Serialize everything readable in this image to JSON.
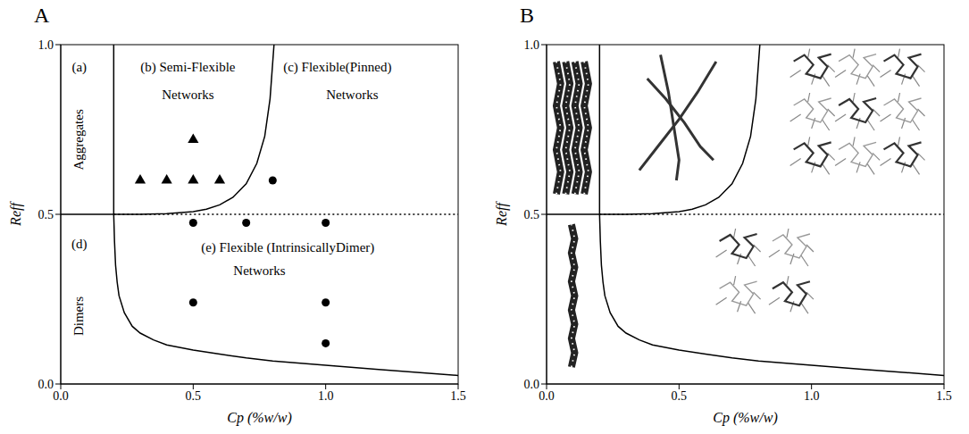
{
  "panel_labels": [
    "A",
    "B"
  ],
  "chart_data": [
    {
      "type": "line",
      "x_label": "Cp (%w/w)",
      "y_label": "Reff",
      "xlim": [
        0,
        1.5
      ],
      "ylim": [
        0,
        1
      ],
      "xticks": [
        {
          "value": 0,
          "label": "0.0"
        },
        0.5,
        {
          "value": 1,
          "label": "1.0"
        },
        1.5
      ],
      "yticks": [
        {
          "value": 0,
          "label": "0.0"
        },
        0.5,
        {
          "value": 1,
          "label": "1.0"
        }
      ],
      "grid": false,
      "annotations": [
        "(a)",
        "Aggregates",
        "(b) Semi-Flexible Networks",
        "(c) Flexible(Pinned) Networks",
        "(d)",
        "Dimers",
        "(e) Flexible (IntrinsicallyDimer) Networks"
      ],
      "series": [
        {
          "type": "line",
          "color": "#000000",
          "line_style": "solid",
          "x": [
            0,
            0.2
          ],
          "values": [
            0.5,
            0.5
          ]
        },
        {
          "type": "line",
          "color": "#000000",
          "line_style": "dotted",
          "x": [
            0.2,
            1.5
          ],
          "values": [
            0.5,
            0.5
          ]
        },
        {
          "type": "line",
          "color": "#000000",
          "line_style": "solid",
          "x": [
            0.2,
            0.2
          ],
          "values": [
            0.5,
            1.0
          ]
        },
        {
          "type": "line",
          "color": "#000000",
          "line_style": "solid",
          "x": [
            0.2,
            0.3,
            0.4,
            0.5,
            0.55,
            0.6,
            0.65,
            0.7,
            0.74,
            0.77,
            0.79,
            0.805
          ],
          "values": [
            0.5,
            0.5,
            0.502,
            0.508,
            0.515,
            0.528,
            0.55,
            0.59,
            0.65,
            0.73,
            0.84,
            1.0
          ]
        },
        {
          "type": "line",
          "color": "#000000",
          "line_style": "solid",
          "x": [
            0.2,
            0.203,
            0.207,
            0.213,
            0.22,
            0.24,
            0.27,
            0.3,
            0.35,
            0.4,
            0.5,
            0.6,
            0.7,
            0.8,
            1.0,
            1.2,
            1.5
          ],
          "values": [
            0.5,
            0.42,
            0.35,
            0.3,
            0.26,
            0.21,
            0.17,
            0.15,
            0.13,
            0.115,
            0.1,
            0.088,
            0.077,
            0.068,
            0.055,
            0.043,
            0.025
          ]
        },
        {
          "type": "scatter",
          "marker": "triangle",
          "color": "#000000",
          "x": [
            0.3,
            0.4,
            0.5,
            0.6,
            0.5
          ],
          "values": [
            0.6,
            0.6,
            0.6,
            0.6,
            0.72
          ]
        },
        {
          "type": "scatter",
          "marker": "circle",
          "color": "#000000",
          "x": [
            0.8,
            0.5,
            0.7,
            1.0,
            0.5,
            1.0,
            1.0
          ],
          "values": [
            0.6,
            0.475,
            0.475,
            0.475,
            0.24,
            0.24,
            0.12
          ]
        }
      ]
    },
    {
      "type": "line",
      "x_label": "Cp (%w/w)",
      "y_label": "Reff",
      "xlim": [
        0,
        1.5
      ],
      "ylim": [
        0,
        1
      ],
      "xticks": [
        {
          "value": 0,
          "label": "0.0"
        },
        0.5,
        {
          "value": 1,
          "label": "1.0"
        },
        1.5
      ],
      "yticks": [
        {
          "value": 0,
          "label": "0.0"
        },
        0.5,
        {
          "value": 1,
          "label": "1.0"
        }
      ],
      "grid": false,
      "series": [
        {
          "type": "line",
          "color": "#000000",
          "line_style": "solid",
          "x": [
            0,
            0.2
          ],
          "values": [
            0.5,
            0.5
          ]
        },
        {
          "type": "line",
          "color": "#000000",
          "line_style": "dotted",
          "x": [
            0.2,
            1.5
          ],
          "values": [
            0.5,
            0.5
          ]
        },
        {
          "type": "line",
          "color": "#000000",
          "line_style": "solid",
          "x": [
            0.2,
            0.2
          ],
          "values": [
            0.5,
            1.0
          ]
        },
        {
          "type": "line",
          "color": "#000000",
          "line_style": "solid",
          "x": [
            0.2,
            0.3,
            0.4,
            0.5,
            0.55,
            0.6,
            0.65,
            0.7,
            0.74,
            0.77,
            0.79,
            0.805
          ],
          "values": [
            0.5,
            0.5,
            0.502,
            0.508,
            0.515,
            0.528,
            0.55,
            0.59,
            0.65,
            0.73,
            0.84,
            1.0
          ]
        },
        {
          "type": "line",
          "color": "#000000",
          "line_style": "solid",
          "x": [
            0.2,
            0.203,
            0.207,
            0.213,
            0.22,
            0.24,
            0.27,
            0.3,
            0.35,
            0.4,
            0.5,
            0.6,
            0.7,
            0.8,
            1.0,
            1.2,
            1.5
          ],
          "values": [
            0.5,
            0.42,
            0.35,
            0.3,
            0.26,
            0.21,
            0.17,
            0.15,
            0.13,
            0.115,
            0.1,
            0.088,
            0.077,
            0.068,
            0.055,
            0.043,
            0.025
          ]
        }
      ]
    }
  ]
}
